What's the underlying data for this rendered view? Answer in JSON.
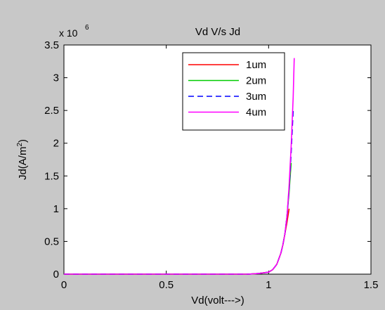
{
  "chart_data": {
    "type": "line",
    "title": "Vd V/s Jd",
    "xlabel": "Vd(volt--->)",
    "ylabel_main": "Jd(A/m",
    "ylabel_sup": "2",
    "ylabel_close": ")",
    "y_multiplier_text": "x 10",
    "y_multiplier_exp": "6",
    "xlim": [
      0,
      1.5
    ],
    "ylim": [
      0,
      3.5
    ],
    "xticks": [
      "0",
      "0.5",
      "1",
      "1.5"
    ],
    "yticks": [
      "0",
      "0.5",
      "1",
      "1.5",
      "2",
      "2.5",
      "3",
      "3.5"
    ],
    "legend_position": "top-right",
    "grid": false,
    "series": [
      {
        "name": "1um",
        "color": "#ff0000",
        "dash": "solid",
        "x": [
          0,
          0.9,
          0.95,
          1.0,
          1.02,
          1.04,
          1.06,
          1.07,
          1.08,
          1.09,
          1.1
        ],
        "y": [
          0,
          0.0,
          0.01,
          0.03,
          0.07,
          0.15,
          0.32,
          0.45,
          0.62,
          0.8,
          1.0
        ]
      },
      {
        "name": "2um",
        "color": "#00cc00",
        "dash": "solid",
        "x": [
          0,
          0.9,
          0.95,
          1.0,
          1.02,
          1.04,
          1.06,
          1.07,
          1.08,
          1.09,
          1.1,
          1.11
        ],
        "y": [
          0,
          0.0,
          0.01,
          0.03,
          0.07,
          0.15,
          0.32,
          0.45,
          0.62,
          0.9,
          1.25,
          1.7
        ]
      },
      {
        "name": "3um",
        "color": "#0000ff",
        "dash": "dashed",
        "x": [
          0,
          0.9,
          0.95,
          1.0,
          1.02,
          1.04,
          1.06,
          1.07,
          1.08,
          1.09,
          1.1,
          1.11,
          1.12
        ],
        "y": [
          0,
          0.0,
          0.01,
          0.03,
          0.07,
          0.15,
          0.32,
          0.45,
          0.62,
          0.9,
          1.3,
          1.85,
          2.5
        ]
      },
      {
        "name": "4um",
        "color": "#ff00ff",
        "dash": "solid",
        "x": [
          0,
          0.9,
          0.95,
          1.0,
          1.02,
          1.04,
          1.06,
          1.07,
          1.08,
          1.09,
          1.1,
          1.11,
          1.12,
          1.125
        ],
        "y": [
          0,
          0.0,
          0.01,
          0.03,
          0.07,
          0.15,
          0.32,
          0.45,
          0.62,
          0.9,
          1.35,
          1.95,
          2.7,
          3.3
        ]
      }
    ]
  }
}
